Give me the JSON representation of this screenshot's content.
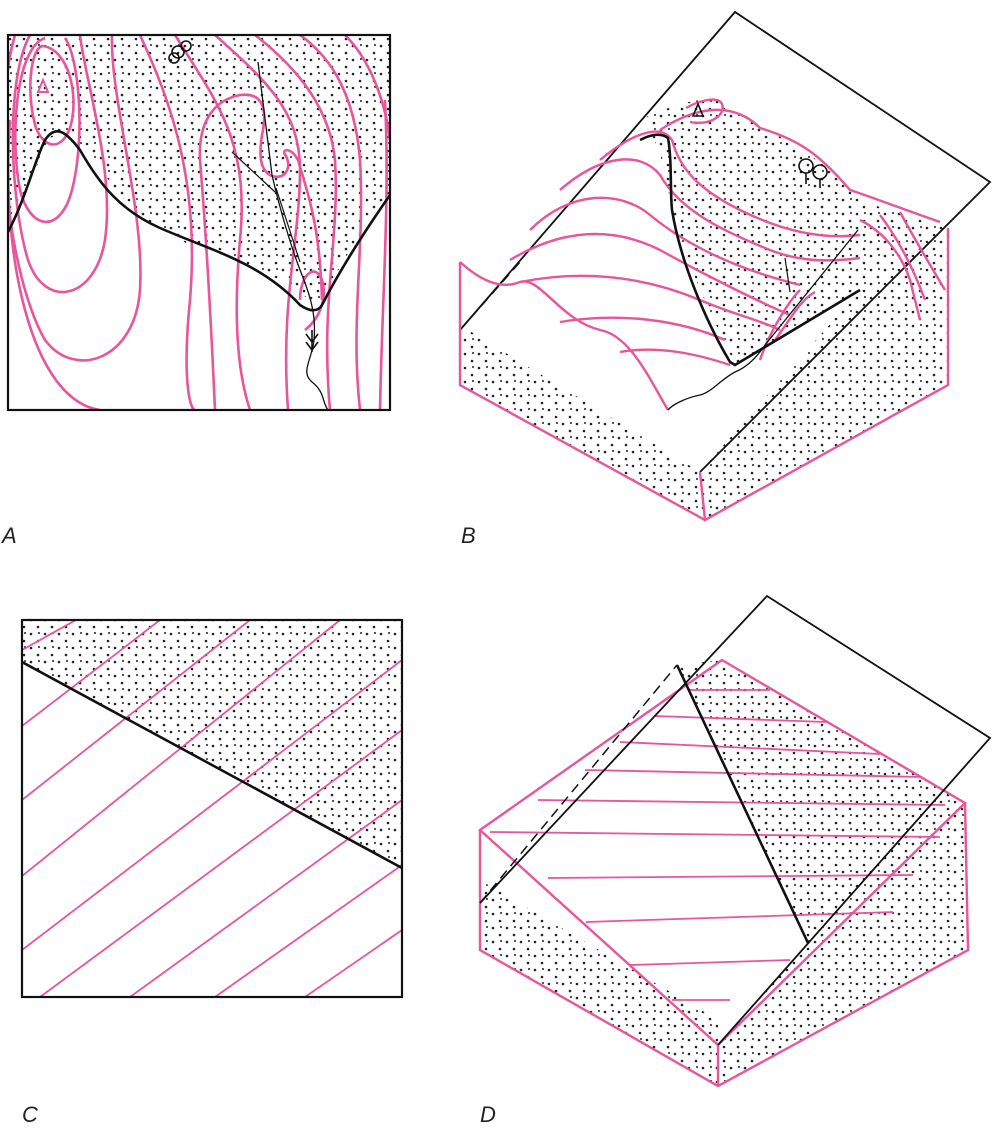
{
  "panels": [
    {
      "id": "A",
      "label": "A"
    },
    {
      "id": "B",
      "label": "B"
    },
    {
      "id": "C",
      "label": "C"
    },
    {
      "id": "D",
      "label": "D"
    }
  ],
  "colors": {
    "contour": "#e8559a",
    "outline": "#111111",
    "stipple": "#222222",
    "background": "#ffffff"
  },
  "icons": [
    "triangulation-station-icon",
    "tree-icon",
    "stream-direction-arrow-icon"
  ]
}
